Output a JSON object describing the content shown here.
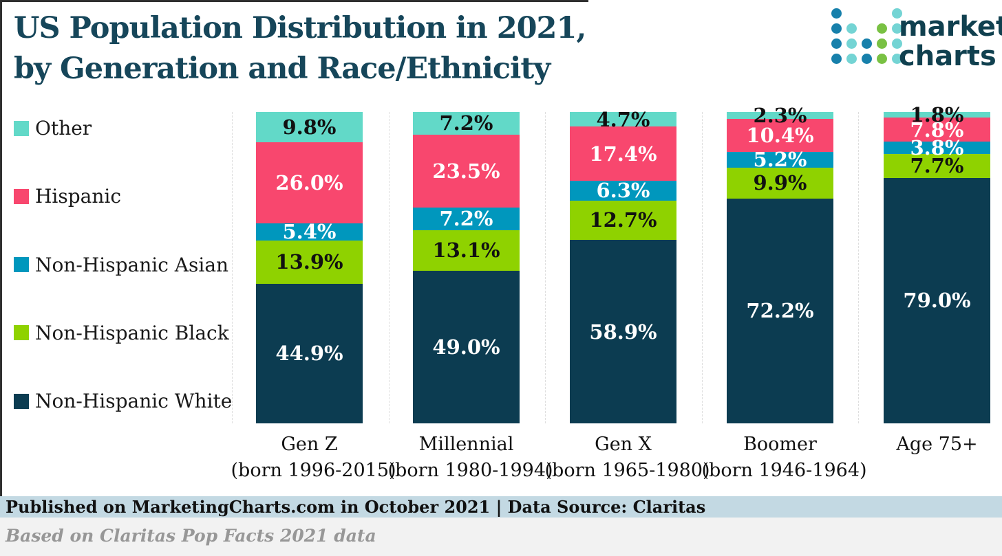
{
  "title": {
    "line1": "US Population Distribution in 2021,",
    "line2": "by Generation and Race/Ethnicity"
  },
  "logo": {
    "line1": "marketing",
    "line2": "charts",
    "dot_colors": {
      "b": "#1780ab",
      "t": "#74d4d4",
      "g": "#79c143"
    },
    "dot_pattern": [
      [
        "b",
        null,
        null,
        null,
        "t"
      ],
      [
        "b",
        "t",
        null,
        "g",
        "t"
      ],
      [
        "b",
        "t",
        "b",
        "g",
        "t"
      ],
      [
        "b",
        "t",
        "b",
        "g",
        "t"
      ]
    ]
  },
  "chart_data": {
    "type": "bar",
    "stacked": true,
    "orientation": "vertical",
    "categories": [
      "Gen Z",
      "Millennial",
      "Gen X",
      "Boomer",
      "Age 75+"
    ],
    "category_sublabels": [
      "(born 1996-2015)",
      "(born 1980-1994)",
      "(born 1965-1980)",
      "(born 1946-1964)",
      ""
    ],
    "series": [
      {
        "name": "Other",
        "color": "#62d9c8",
        "label_style": "dark",
        "values": [
          9.8,
          7.2,
          4.7,
          2.3,
          1.8
        ]
      },
      {
        "name": "Hispanic",
        "color": "#f8476e",
        "label_style": "white",
        "values": [
          26.0,
          23.5,
          17.4,
          10.4,
          7.8
        ]
      },
      {
        "name": "Non-Hispanic Asian",
        "color": "#0097bd",
        "label_style": "white",
        "values": [
          5.4,
          7.2,
          6.3,
          5.2,
          3.8
        ]
      },
      {
        "name": "Non-Hispanic Black",
        "color": "#8fd200",
        "label_style": "dark",
        "values": [
          13.9,
          13.1,
          12.7,
          9.9,
          7.7
        ]
      },
      {
        "name": "Non-Hispanic White",
        "color": "#0c3c51",
        "label_style": "white",
        "values": [
          44.9,
          49.0,
          58.9,
          72.2,
          79.0
        ]
      }
    ],
    "value_suffix": "%",
    "value_decimals": 1,
    "ylim": [
      0,
      100
    ],
    "legend_position": "left",
    "grid": "dashed-vertical-category-separators"
  },
  "footer": {
    "published": "Published on MarketingCharts.com in October 2021 | Data Source: Claritas",
    "note": "Based on Claritas Pop Facts 2021 data"
  }
}
